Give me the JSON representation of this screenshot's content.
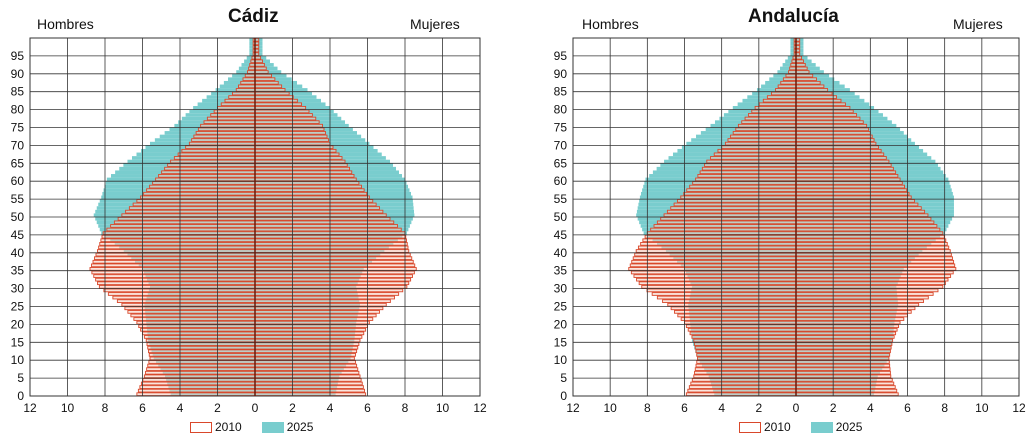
{
  "colors": {
    "bar_2010_stroke": "#d9482b",
    "bar_2010_fill": "#f6cdbf",
    "bar_2025_fill": "#79cdce",
    "grid": "#333333",
    "plot_bg": "#ffffff",
    "axis_line": "#6b1a0a"
  },
  "chart_data": [
    {
      "type": "bar",
      "subtype": "population-pyramid",
      "title": "Cádiz",
      "left_label": "Hombres",
      "right_label": "Mujeres",
      "y_ticks": [
        "0",
        "5",
        "10",
        "15",
        "20",
        "25",
        "30",
        "35",
        "40",
        "45",
        "50",
        "55",
        "60",
        "65",
        "70",
        "75",
        "80",
        "85",
        "90",
        "95"
      ],
      "x_ticks": [
        "12",
        "10",
        "8",
        "6",
        "4",
        "2",
        "0",
        "2",
        "4",
        "6",
        "8",
        "10",
        "12"
      ],
      "xlim": [
        -12,
        12
      ],
      "ylim": [
        0,
        100
      ],
      "grid": true,
      "legend_position": "bottom",
      "series": [
        {
          "name": "2010",
          "age_step": 5,
          "ages": [
            0,
            5,
            10,
            15,
            20,
            25,
            30,
            35,
            40,
            45,
            50,
            55,
            60,
            65,
            70,
            75,
            80,
            85,
            90,
            95
          ],
          "men": [
            6.3,
            5.9,
            5.6,
            5.8,
            6.3,
            7.1,
            8.3,
            8.8,
            8.4,
            8.1,
            7.1,
            6.1,
            5.3,
            4.5,
            3.5,
            2.9,
            2.0,
            1.0,
            0.4,
            0.1
          ],
          "women": [
            5.9,
            5.6,
            5.3,
            5.6,
            6.1,
            7.0,
            8.1,
            8.6,
            8.2,
            8.0,
            7.0,
            6.1,
            5.4,
            4.8,
            4.0,
            3.6,
            2.7,
            1.6,
            0.7,
            0.2
          ]
        },
        {
          "name": "2025",
          "age_step": 5,
          "ages": [
            0,
            5,
            10,
            15,
            20,
            25,
            30,
            35,
            40,
            45,
            50,
            55,
            60,
            65,
            70,
            75,
            80,
            85,
            90,
            95
          ],
          "men": [
            4.5,
            4.8,
            5.4,
            5.7,
            5.8,
            5.9,
            5.6,
            6.0,
            7.0,
            8.2,
            8.6,
            8.2,
            7.9,
            6.8,
            5.6,
            4.3,
            3.3,
            2.1,
            1.0,
            0.3
          ],
          "women": [
            4.3,
            4.5,
            5.1,
            5.3,
            5.4,
            5.6,
            5.4,
            5.8,
            6.9,
            8.1,
            8.5,
            8.4,
            8.0,
            7.2,
            6.1,
            5.0,
            4.0,
            2.8,
            1.4,
            0.4
          ]
        }
      ]
    },
    {
      "type": "bar",
      "subtype": "population-pyramid",
      "title": "Andalucía",
      "left_label": "Hombres",
      "right_label": "Mujeres",
      "y_ticks": [
        "0",
        "5",
        "10",
        "15",
        "20",
        "25",
        "30",
        "35",
        "40",
        "45",
        "50",
        "55",
        "60",
        "65",
        "70",
        "75",
        "80",
        "85",
        "90",
        "95"
      ],
      "x_ticks": [
        "12",
        "10",
        "8",
        "6",
        "4",
        "2",
        "0",
        "2",
        "4",
        "6",
        "8",
        "10",
        "12"
      ],
      "xlim": [
        -12,
        12
      ],
      "ylim": [
        0,
        100
      ],
      "grid": true,
      "legend_position": "bottom",
      "series": [
        {
          "name": "2010",
          "age_step": 5,
          "ages": [
            0,
            5,
            10,
            15,
            20,
            25,
            30,
            35,
            40,
            45,
            50,
            55,
            60,
            65,
            70,
            75,
            80,
            85,
            90,
            95
          ],
          "men": [
            5.9,
            5.5,
            5.3,
            5.5,
            6.0,
            6.9,
            8.3,
            9.0,
            8.6,
            8.0,
            7.1,
            6.2,
            5.4,
            4.8,
            3.8,
            3.1,
            2.2,
            1.1,
            0.4,
            0.1
          ],
          "women": [
            5.5,
            5.1,
            5.0,
            5.2,
            5.6,
            6.6,
            7.9,
            8.6,
            8.3,
            7.9,
            7.1,
            6.2,
            5.6,
            5.0,
            4.3,
            3.8,
            2.9,
            1.7,
            0.7,
            0.2
          ]
        },
        {
          "name": "2025",
          "age_step": 5,
          "ages": [
            0,
            5,
            10,
            15,
            20,
            25,
            30,
            35,
            40,
            45,
            50,
            55,
            60,
            65,
            70,
            75,
            80,
            85,
            90,
            95
          ],
          "men": [
            4.4,
            4.7,
            5.3,
            5.6,
            5.7,
            5.8,
            5.6,
            6.0,
            7.0,
            8.2,
            8.6,
            8.4,
            8.1,
            7.1,
            5.9,
            4.6,
            3.4,
            2.1,
            1.0,
            0.3
          ],
          "women": [
            4.2,
            4.4,
            5.0,
            5.2,
            5.3,
            5.5,
            5.4,
            5.8,
            6.8,
            8.0,
            8.5,
            8.5,
            8.2,
            7.5,
            6.4,
            5.4,
            4.2,
            2.9,
            1.5,
            0.4
          ]
        }
      ]
    }
  ]
}
